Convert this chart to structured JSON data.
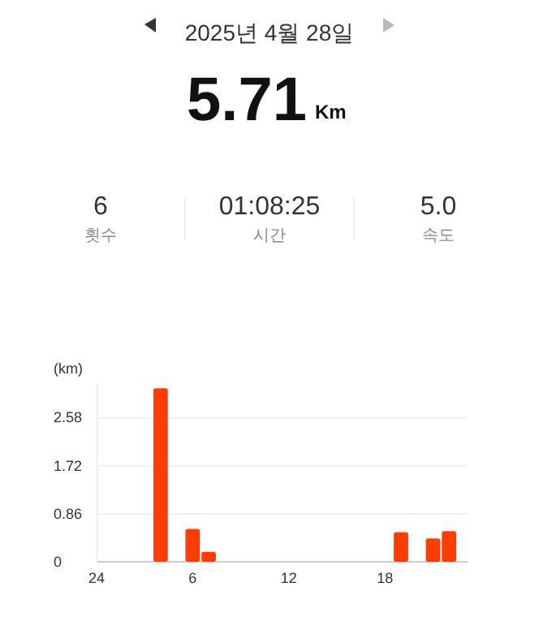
{
  "chart_data": {
    "type": "bar",
    "title": "2025년 4월 28일",
    "annotations": [
      "5.71",
      "Km",
      "6",
      "횟수",
      "01:08:25",
      "시간",
      "5.0",
      "속도"
    ],
    "ylabel": "(km)",
    "categories": [
      "24",
      null,
      null,
      null,
      null,
      null,
      "6",
      null,
      null,
      null,
      null,
      null,
      "12",
      null,
      null,
      null,
      null,
      null,
      "18",
      null,
      null,
      null,
      null,
      null
    ],
    "values": [
      0,
      0,
      0,
      0,
      3.11,
      0,
      0.59,
      0.18,
      0,
      0,
      0,
      0,
      0,
      0,
      0,
      0,
      0,
      0,
      0,
      0.53,
      0,
      0.42,
      0.55,
      0
    ],
    "color": "#fc3d05",
    "ylim": [
      0,
      3.2
    ],
    "yticks": [
      0,
      0.86,
      1.72,
      2.58
    ],
    "grid": "y"
  }
}
